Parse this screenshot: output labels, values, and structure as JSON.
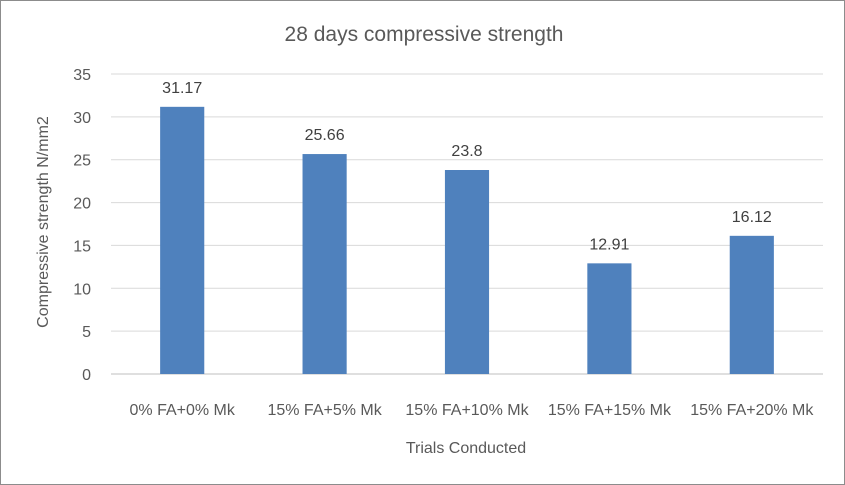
{
  "chart_data": {
    "type": "bar",
    "title": "28 days compressive strength",
    "xlabel": "Trials Conducted",
    "ylabel": "Compressive strength N/mm2",
    "categories": [
      "0% FA+0% Mk",
      "15% FA+5% Mk",
      "15% FA+10% Mk",
      "15% FA+15% Mk",
      "15% FA+20% Mk"
    ],
    "series": [
      {
        "values": [
          31.17,
          25.66,
          23.8,
          12.91,
          16.12
        ],
        "labels": [
          "31.17",
          "25.66",
          "23.8",
          "12.91",
          "16.12"
        ],
        "color": "#4f81bd"
      }
    ],
    "ylim": [
      0,
      35
    ],
    "yticks": [
      0,
      5,
      10,
      15,
      20,
      25,
      30,
      35
    ],
    "grid": true,
    "legend": "none"
  }
}
